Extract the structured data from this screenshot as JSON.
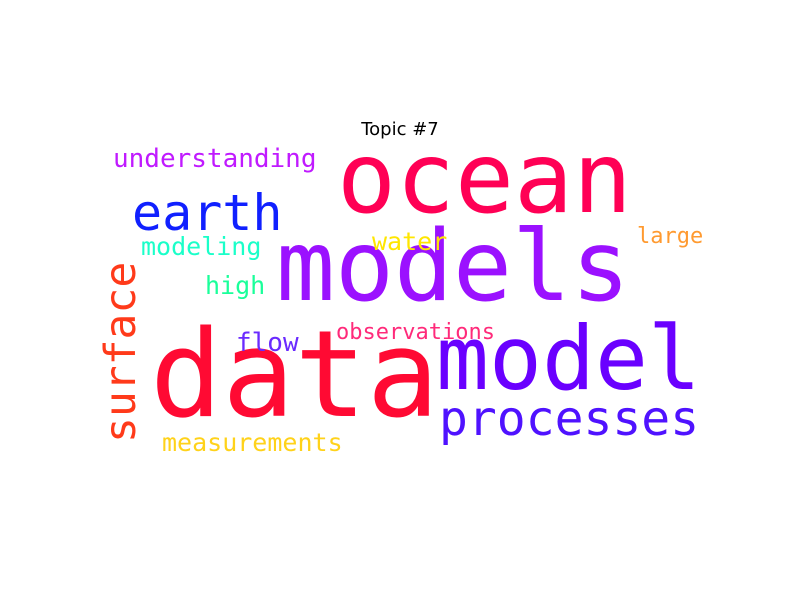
{
  "title": "Topic #7",
  "words": [
    {
      "key": "ocean",
      "text": "ocean",
      "color": "#ff0055"
    },
    {
      "key": "models",
      "text": "models",
      "color": "#9b11ff"
    },
    {
      "key": "data",
      "text": "data",
      "color": "#ff0a33"
    },
    {
      "key": "model",
      "text": "model",
      "color": "#6a00ff"
    },
    {
      "key": "processes",
      "text": "processes",
      "color": "#4f12ff"
    },
    {
      "key": "earth",
      "text": "earth",
      "color": "#1020ff"
    },
    {
      "key": "surface",
      "text": "surface",
      "color": "#ff3a1a"
    },
    {
      "key": "understanding",
      "text": "understanding",
      "color": "#c01aff"
    },
    {
      "key": "modeling",
      "text": "modeling",
      "color": "#1affc9"
    },
    {
      "key": "high",
      "text": "high",
      "color": "#1aff9a"
    },
    {
      "key": "water",
      "text": "water",
      "color": "#ffe600"
    },
    {
      "key": "large",
      "text": "large",
      "color": "#ff9a30"
    },
    {
      "key": "observations",
      "text": "observations",
      "color": "#ff2a7a"
    },
    {
      "key": "flow",
      "text": "flow",
      "color": "#6a2aff"
    },
    {
      "key": "measurements",
      "text": "measurements",
      "color": "#ffd21a"
    }
  ]
}
